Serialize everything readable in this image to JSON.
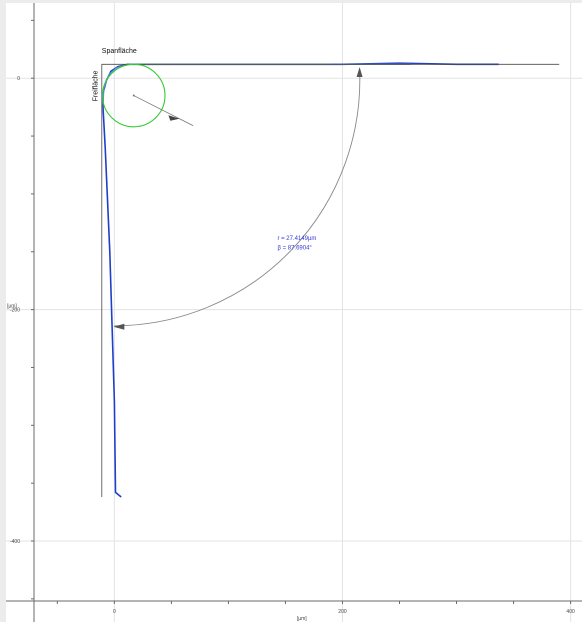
{
  "chart_data": {
    "type": "line",
    "x_unit_label": "[µm]",
    "y_unit_label": "[µm]",
    "x_ticks": [
      "0",
      "200",
      "400"
    ],
    "y_ticks": [
      "0",
      "-200",
      "-400"
    ],
    "xlim": [
      -95,
      410
    ],
    "ylim": [
      -470,
      65
    ],
    "grid": true,
    "annotations": {
      "rake_face": "Spanfläche",
      "flank_face": "Freifläche",
      "radius_text": "r = 27.4149µm",
      "angle_text": "β = 87.6904°"
    },
    "series": [
      {
        "color": "#1f3fc8",
        "points": [
          [
            6,
            -362
          ],
          [
            1,
            -358
          ],
          [
            0,
            -280
          ],
          [
            -4,
            -150
          ],
          [
            -8,
            -60
          ],
          [
            -10,
            -25
          ],
          [
            -10,
            -13
          ],
          [
            -7,
            -2
          ],
          [
            -3,
            6
          ],
          [
            3,
            10
          ],
          [
            12,
            12
          ],
          [
            30,
            12
          ],
          [
            100,
            12
          ],
          [
            200,
            12
          ],
          [
            250,
            13
          ],
          [
            300,
            12
          ],
          [
            337,
            12
          ]
        ]
      },
      {
        "color": "#5c8fe0",
        "points": [
          [
            -10,
            -22
          ],
          [
            -9,
            -8
          ],
          [
            -5,
            3
          ],
          [
            2,
            9
          ],
          [
            12,
            12
          ],
          [
            60,
            12
          ],
          [
            150,
            12
          ],
          [
            200,
            12
          ],
          [
            260,
            12
          ]
        ]
      },
      {
        "color": "#55aa55",
        "points": [
          [
            12,
            12
          ],
          [
            80,
            12
          ],
          [
            140,
            12
          ],
          [
            190,
            12
          ]
        ]
      },
      {
        "color": "#4a4a4a",
        "points": [
          [
            -11,
            -362
          ],
          [
            -11,
            12
          ],
          [
            390,
            12
          ]
        ]
      }
    ],
    "circle_fit": {
      "color": "#33cc33",
      "center": [
        17,
        -15
      ],
      "radius": 27.4
    },
    "colors": {
      "profile": "#1f3fc8",
      "reference": "#4a4a4a",
      "circle": "#33cc33",
      "angle_arc": "#888888",
      "measurement_text": "#3535d8"
    }
  }
}
